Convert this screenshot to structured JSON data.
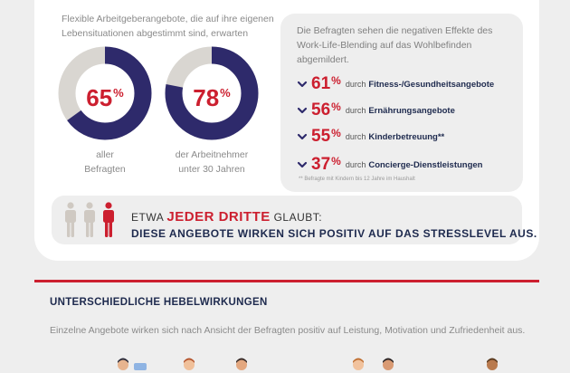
{
  "intro_text": "Flexible Arbeitgeberangebote, die auf ihre eigenen Lebensituationen abgestimmt sind, erwarten",
  "donuts": [
    {
      "value": 65,
      "label": "65",
      "unit": "%",
      "caption_line1": "aller",
      "caption_line2": "Befragten"
    },
    {
      "value": 78,
      "label": "78",
      "unit": "%",
      "caption_line1": "der Arbeitnehmer",
      "caption_line2": "unter 30 Jahren"
    }
  ],
  "effects": {
    "intro": "Die Befragten sehen die negativen Effekte des Work-Life-Blending auf das Wohlbefinden abgemildert.",
    "prefix": "durch",
    "items": [
      {
        "value": "61",
        "unit": "%",
        "label": "Fitness-/Gesundheitsangebote"
      },
      {
        "value": "56",
        "unit": "%",
        "label": "Ernährungsangebote"
      },
      {
        "value": "55",
        "unit": "%",
        "label": "Kinderbetreuung**"
      },
      {
        "value": "37",
        "unit": "%",
        "label": "Concierge-Dienstleistungen"
      }
    ],
    "footnote": "** Befragte mit Kindern bis 12 Jahre im Haushalt"
  },
  "third": {
    "pre": "ETWA ",
    "highlight": "JEDER DRITTE",
    "post": " GLAUBT:",
    "line2": "DIESE ANGEBOTE WIRKEN SICH POSITIV AUF DAS STRESSLEVEL AUS.",
    "figures_highlighted": 1,
    "figures_total": 3
  },
  "section": {
    "title": "UNTERSCHIEDLICHE HEBELWIRKUNGEN",
    "text": "Einzelne Angebote wirken sich nach Ansicht der Befragten positiv auf Leistung, Motivation und Zufriedenheit aus."
  },
  "colors": {
    "accent_red": "#cc1f2f",
    "navy": "#2e2a6b",
    "ring_grey": "#d9d6d1",
    "figure_grey": "#cfc9c2"
  },
  "icons": [
    "chevron-down-icon",
    "person-icon"
  ]
}
